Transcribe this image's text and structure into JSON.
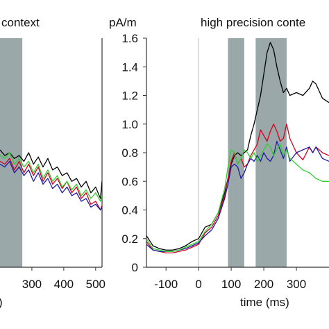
{
  "chart_data": [
    {
      "type": "line",
      "title": "context",
      "xlabel": "",
      "ylabel": "",
      "xlim": [
        200,
        520
      ],
      "ylim": [
        0,
        1.6
      ],
      "x_ticks": [
        300,
        400,
        500
      ],
      "shaded_regions": [
        [
          200,
          270
        ]
      ],
      "series": [
        {
          "color": "#000000",
          "x": [
            200,
            215,
            230,
            245,
            260,
            275,
            290,
            305,
            320,
            335,
            350,
            365,
            380,
            395,
            410,
            425,
            440,
            455,
            470,
            485,
            500,
            515,
            520
          ],
          "y": [
            0.82,
            0.78,
            0.8,
            0.76,
            0.78,
            0.74,
            0.8,
            0.72,
            0.77,
            0.7,
            0.76,
            0.68,
            0.7,
            0.64,
            0.66,
            0.6,
            0.62,
            0.56,
            0.6,
            0.52,
            0.56,
            0.48,
            0.6
          ]
        },
        {
          "color": "#d4001c",
          "x": [
            200,
            215,
            230,
            245,
            260,
            275,
            290,
            305,
            320,
            335,
            350,
            365,
            380,
            395,
            410,
            425,
            440,
            455,
            470,
            485,
            500,
            515,
            520
          ],
          "y": [
            0.74,
            0.72,
            0.76,
            0.68,
            0.74,
            0.66,
            0.72,
            0.64,
            0.7,
            0.6,
            0.66,
            0.58,
            0.62,
            0.55,
            0.6,
            0.52,
            0.56,
            0.48,
            0.52,
            0.44,
            0.46,
            0.4,
            0.43
          ]
        },
        {
          "color": "#1a1aa6",
          "x": [
            200,
            215,
            230,
            245,
            260,
            275,
            290,
            305,
            320,
            335,
            350,
            365,
            380,
            395,
            410,
            425,
            440,
            455,
            470,
            485,
            500,
            515,
            520
          ],
          "y": [
            0.72,
            0.7,
            0.74,
            0.66,
            0.7,
            0.64,
            0.68,
            0.6,
            0.66,
            0.58,
            0.62,
            0.55,
            0.58,
            0.52,
            0.56,
            0.5,
            0.52,
            0.46,
            0.48,
            0.42,
            0.44,
            0.4,
            0.42
          ]
        },
        {
          "color": "#2fcf2f",
          "x": [
            200,
            215,
            230,
            245,
            260,
            275,
            290,
            305,
            320,
            335,
            350,
            365,
            380,
            395,
            410,
            425,
            440,
            455,
            470,
            485,
            500,
            515,
            520
          ],
          "y": [
            0.78,
            0.76,
            0.8,
            0.72,
            0.76,
            0.7,
            0.74,
            0.66,
            0.72,
            0.62,
            0.68,
            0.6,
            0.64,
            0.56,
            0.6,
            0.54,
            0.58,
            0.5,
            0.54,
            0.48,
            0.52,
            0.46,
            0.5
          ]
        }
      ]
    },
    {
      "type": "line",
      "title": "high precision conte",
      "ylabel": "pA/m",
      "xlabel": "time (ms)",
      "xlim": [
        -160,
        400
      ],
      "ylim": [
        0,
        1.6
      ],
      "x_ticks": [
        -100,
        0,
        100,
        200,
        300
      ],
      "y_ticks": [
        0,
        0.2,
        0.4,
        0.6,
        0.8,
        1.0,
        1.2,
        1.4,
        1.6
      ],
      "shaded_regions": [
        [
          90,
          140
        ],
        [
          175,
          270
        ]
      ],
      "series": [
        {
          "color": "#000000",
          "x": [
            -160,
            -140,
            -120,
            -100,
            -80,
            -60,
            -40,
            -20,
            0,
            20,
            40,
            60,
            80,
            90,
            100,
            110,
            120,
            130,
            140,
            150,
            160,
            170,
            180,
            190,
            200,
            210,
            220,
            230,
            240,
            250,
            260,
            270,
            280,
            300,
            320,
            340,
            350,
            360,
            380,
            400
          ],
          "y": [
            0.22,
            0.15,
            0.13,
            0.12,
            0.12,
            0.13,
            0.15,
            0.18,
            0.2,
            0.28,
            0.3,
            0.38,
            0.52,
            0.62,
            0.72,
            0.78,
            0.8,
            0.78,
            0.8,
            0.82,
            0.92,
            1.0,
            1.1,
            1.2,
            1.35,
            1.5,
            1.57,
            1.52,
            1.4,
            1.3,
            1.22,
            1.25,
            1.2,
            1.22,
            1.2,
            1.25,
            1.3,
            1.28,
            1.18,
            1.15
          ]
        },
        {
          "color": "#d4001c",
          "x": [
            -160,
            -140,
            -120,
            -100,
            -80,
            -60,
            -40,
            -20,
            0,
            20,
            40,
            60,
            80,
            90,
            100,
            110,
            120,
            130,
            140,
            150,
            160,
            170,
            180,
            190,
            200,
            210,
            220,
            230,
            240,
            250,
            260,
            270,
            280,
            300,
            320,
            340,
            350,
            360,
            380,
            400
          ],
          "y": [
            0.18,
            0.12,
            0.11,
            0.1,
            0.1,
            0.11,
            0.12,
            0.14,
            0.16,
            0.24,
            0.28,
            0.36,
            0.5,
            0.62,
            0.74,
            0.8,
            0.72,
            0.76,
            0.7,
            0.72,
            0.78,
            0.82,
            0.86,
            0.96,
            0.92,
            0.88,
            0.95,
            1.0,
            0.95,
            0.88,
            0.9,
            1.0,
            0.9,
            0.8,
            0.75,
            0.84,
            0.8,
            0.84,
            0.8,
            0.78
          ]
        },
        {
          "color": "#1a1aa6",
          "x": [
            -160,
            -140,
            -120,
            -100,
            -80,
            -60,
            -40,
            -20,
            0,
            20,
            40,
            60,
            80,
            90,
            100,
            110,
            120,
            130,
            140,
            150,
            160,
            170,
            180,
            190,
            200,
            210,
            220,
            230,
            240,
            250,
            260,
            270,
            280,
            300,
            320,
            340,
            350,
            360,
            380,
            400
          ],
          "y": [
            0.16,
            0.12,
            0.11,
            0.11,
            0.11,
            0.12,
            0.13,
            0.15,
            0.17,
            0.22,
            0.26,
            0.34,
            0.48,
            0.58,
            0.7,
            0.72,
            0.7,
            0.62,
            0.66,
            0.72,
            0.76,
            0.74,
            0.78,
            0.74,
            0.8,
            0.76,
            0.74,
            0.78,
            0.88,
            0.82,
            0.76,
            0.84,
            0.74,
            0.8,
            0.82,
            0.84,
            0.8,
            0.84,
            0.76,
            0.74
          ]
        },
        {
          "color": "#2fcf2f",
          "x": [
            -160,
            -140,
            -120,
            -100,
            -80,
            -60,
            -40,
            -20,
            0,
            20,
            40,
            60,
            80,
            90,
            100,
            110,
            120,
            130,
            140,
            150,
            160,
            170,
            180,
            190,
            200,
            210,
            220,
            230,
            240,
            250,
            260,
            270,
            280,
            300,
            320,
            340,
            350,
            360,
            380,
            400
          ],
          "y": [
            0.2,
            0.13,
            0.12,
            0.11,
            0.11,
            0.12,
            0.14,
            0.16,
            0.18,
            0.25,
            0.3,
            0.38,
            0.55,
            0.7,
            0.82,
            0.8,
            0.72,
            0.76,
            0.82,
            0.8,
            0.76,
            0.8,
            0.74,
            0.78,
            0.82,
            0.86,
            0.84,
            0.78,
            0.82,
            0.86,
            0.78,
            0.82,
            0.76,
            0.72,
            0.68,
            0.66,
            0.64,
            0.62,
            0.6,
            0.6
          ]
        }
      ]
    }
  ]
}
